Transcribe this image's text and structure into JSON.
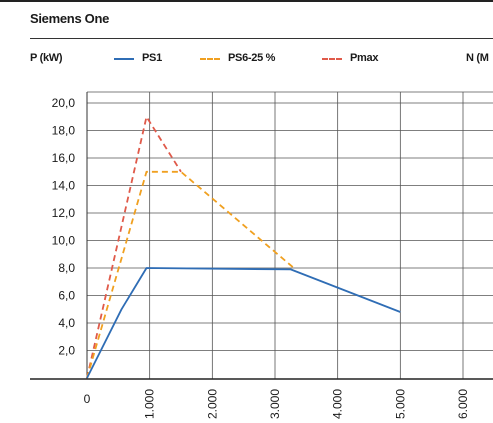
{
  "page": {
    "title": "Siemens One"
  },
  "chart_data": {
    "type": "line",
    "title": "Siemens One",
    "ylabel": "P (kW)",
    "y2label": "N (M",
    "ylim": [
      0,
      21
    ],
    "xlim": [
      0,
      6000
    ],
    "yticks": [
      "20,0",
      "18,0",
      "16,0",
      "14,0",
      "12,0",
      "10,0",
      "8,0",
      "6,0",
      "4,0",
      "2,0"
    ],
    "ytick_values": [
      20,
      18,
      16,
      14,
      12,
      10,
      8,
      6,
      4,
      2
    ],
    "xticks": [
      "0",
      "1.000",
      "2.000",
      "3.000",
      "4.000",
      "5.000",
      "6.000"
    ],
    "xtick_values": [
      0,
      1000,
      2000,
      3000,
      4000,
      5000,
      6000
    ],
    "grid": true,
    "legend_position": "top",
    "series": [
      {
        "name": "PS1",
        "color": "#2f6db5",
        "style": "solid",
        "x": [
          0,
          550,
          950,
          3250,
          5000
        ],
        "y": [
          0,
          5.0,
          8.0,
          7.9,
          4.8
        ]
      },
      {
        "name": "PS6-25 %",
        "color": "#f0a020",
        "style": "dashed",
        "x": [
          0,
          950,
          1500,
          3300
        ],
        "y": [
          0,
          15.0,
          15.0,
          8.0
        ]
      },
      {
        "name": "Pmax",
        "color": "#e05a4a",
        "style": "dashed",
        "x": [
          0,
          950,
          1500
        ],
        "y": [
          0,
          19.0,
          15.0
        ]
      }
    ]
  }
}
